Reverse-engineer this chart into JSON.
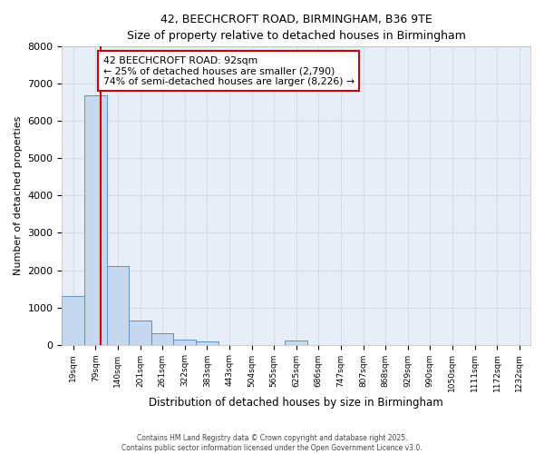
{
  "title_line1": "42, BEECHCROFT ROAD, BIRMINGHAM, B36 9TE",
  "title_line2": "Size of property relative to detached houses in Birmingham",
  "xlabel": "Distribution of detached houses by size in Birmingham",
  "ylabel": "Number of detached properties",
  "bin_labels": [
    "19sqm",
    "79sqm",
    "140sqm",
    "201sqm",
    "261sqm",
    "322sqm",
    "383sqm",
    "443sqm",
    "504sqm",
    "565sqm",
    "625sqm",
    "686sqm",
    "747sqm",
    "807sqm",
    "868sqm",
    "929sqm",
    "990sqm",
    "1050sqm",
    "1111sqm",
    "1172sqm",
    "1232sqm"
  ],
  "bar_heights": [
    1300,
    6700,
    2100,
    650,
    300,
    130,
    90,
    0,
    0,
    0,
    100,
    0,
    0,
    0,
    0,
    0,
    0,
    0,
    0,
    0,
    0
  ],
  "bar_color": "#c5d8f0",
  "bar_edge_color": "#6090c8",
  "grid_color": "#d0dcea",
  "bg_color": "#e8eef8",
  "red_line_x": 1.22,
  "annotation_title": "42 BEECHCROFT ROAD: 92sqm",
  "annotation_line2": "← 25% of detached houses are smaller (2,790)",
  "annotation_line3": "74% of semi-detached houses are larger (8,226) →",
  "annotation_box_color": "#cc0000",
  "ylim": [
    0,
    8000
  ],
  "yticks": [
    0,
    1000,
    2000,
    3000,
    4000,
    5000,
    6000,
    7000,
    8000
  ],
  "footer_line1": "Contains HM Land Registry data © Crown copyright and database right 2025.",
  "footer_line2": "Contains public sector information licensed under the Open Government Licence v3.0."
}
